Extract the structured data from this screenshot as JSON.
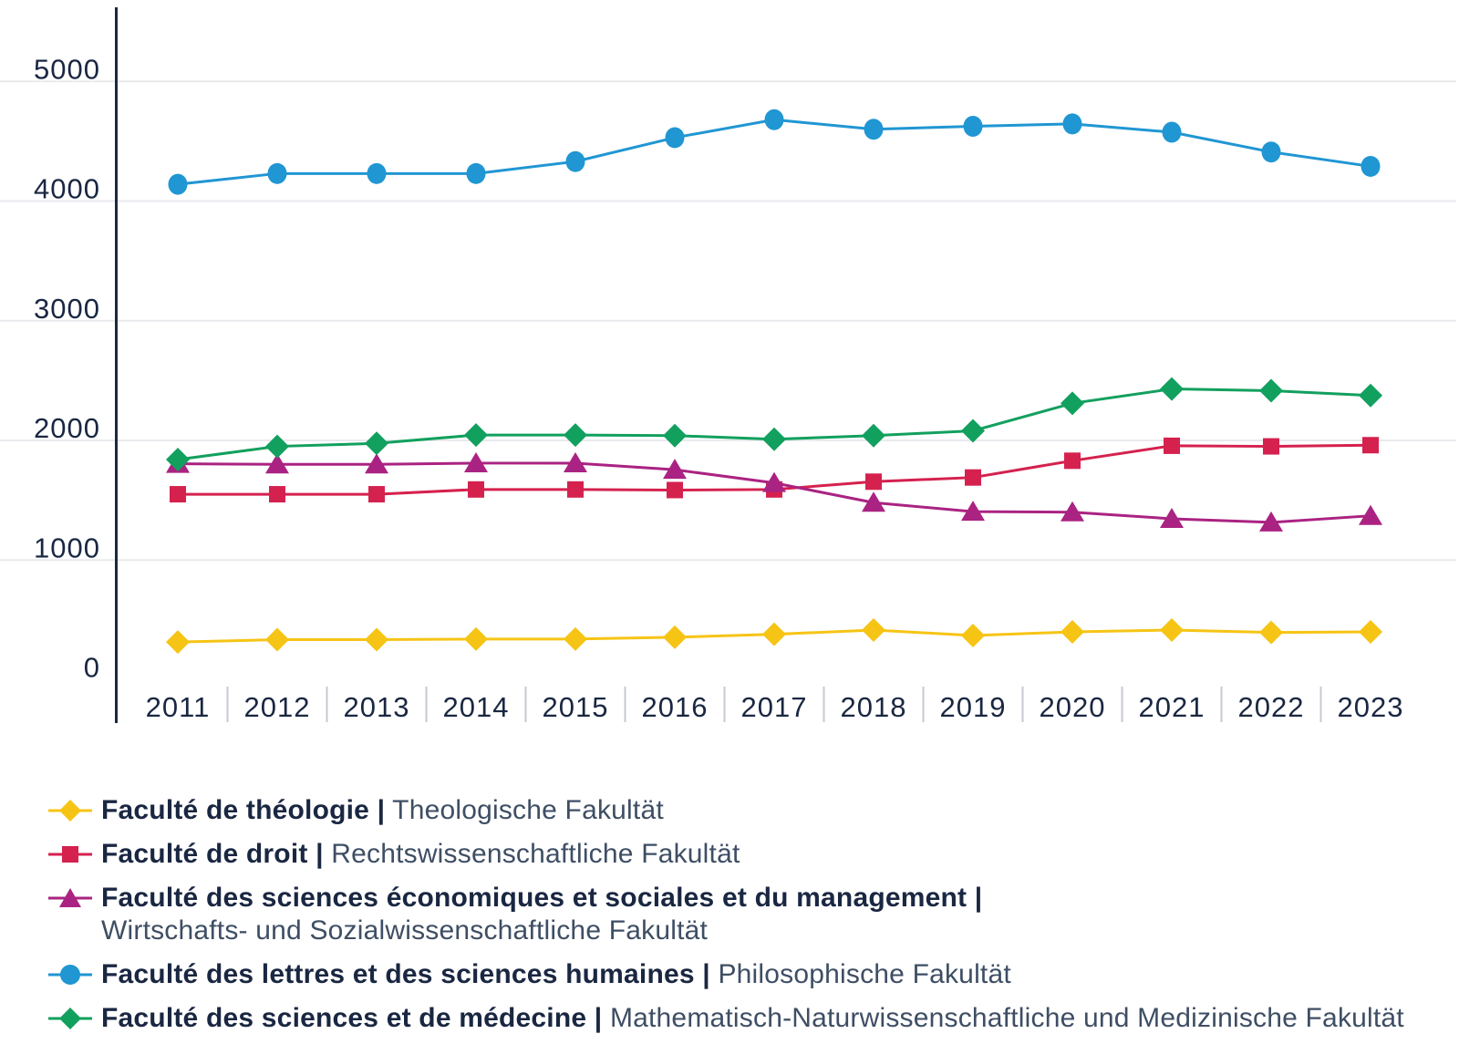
{
  "chart_data": {
    "type": "line",
    "x": [
      2011,
      2012,
      2013,
      2014,
      2015,
      2016,
      2017,
      2018,
      2019,
      2020,
      2021,
      2022,
      2023
    ],
    "series": [
      {
        "key": "theologie",
        "name_fr": "Faculté de théologie |",
        "name_de": "Theologische Fakultät",
        "color": "#F6C415",
        "marker": "diamond",
        "values": [
          315,
          335,
          335,
          340,
          340,
          355,
          380,
          415,
          370,
          400,
          415,
          395,
          400
        ]
      },
      {
        "key": "droit",
        "name_fr": "Faculté de droit |",
        "name_de": "Rechtswissenschaftliche Fakultät",
        "color": "#D5214E",
        "marker": "square",
        "values": [
          1550,
          1550,
          1550,
          1590,
          1590,
          1585,
          1590,
          1655,
          1690,
          1830,
          1955,
          1950,
          1960
        ]
      },
      {
        "key": "sciences-economiques",
        "name_fr": "Faculté des sciences économiques et sociales et du management |",
        "name_de": "Wirtschafts- und Sozialwissenschaftliche Fakultät",
        "color": "#AA2382",
        "marker": "triangle",
        "values": [
          1805,
          1800,
          1800,
          1810,
          1810,
          1755,
          1645,
          1480,
          1405,
          1400,
          1345,
          1315,
          1370
        ]
      },
      {
        "key": "lettres",
        "name_fr": "Faculté des lettres et des sciences humaines |",
        "name_de": "Philosophische Fakultät",
        "color": "#2096D3",
        "marker": "circle",
        "values": [
          4140,
          4230,
          4230,
          4230,
          4330,
          4530,
          4680,
          4600,
          4625,
          4645,
          4575,
          4410,
          4290
        ]
      },
      {
        "key": "sciences-medecine",
        "name_fr": "Faculté des sciences et de médecine |",
        "name_de": "Mathematisch-Naturwissenschaftliche und Medizinische Fakultät",
        "color": "#12A05E",
        "marker": "diamond",
        "values": [
          1840,
          1950,
          1975,
          2045,
          2045,
          2040,
          2010,
          2040,
          2080,
          2310,
          2430,
          2415,
          2375
        ]
      }
    ],
    "ylim": [
      0,
      5500
    ],
    "yticks": [
      0,
      1000,
      2000,
      3000,
      4000,
      5000
    ],
    "grid": "horizontal-only",
    "legend_position": "bottom-left"
  },
  "colors": {
    "background": "#ffffff",
    "axis_line": "#1b2940",
    "tick_label": "#1a2742",
    "gridline": "#e9eaee",
    "x_separator": "#c6c9d1",
    "legend_primary_text": "#1a2742",
    "legend_secondary_text": "#3e4e64"
  }
}
